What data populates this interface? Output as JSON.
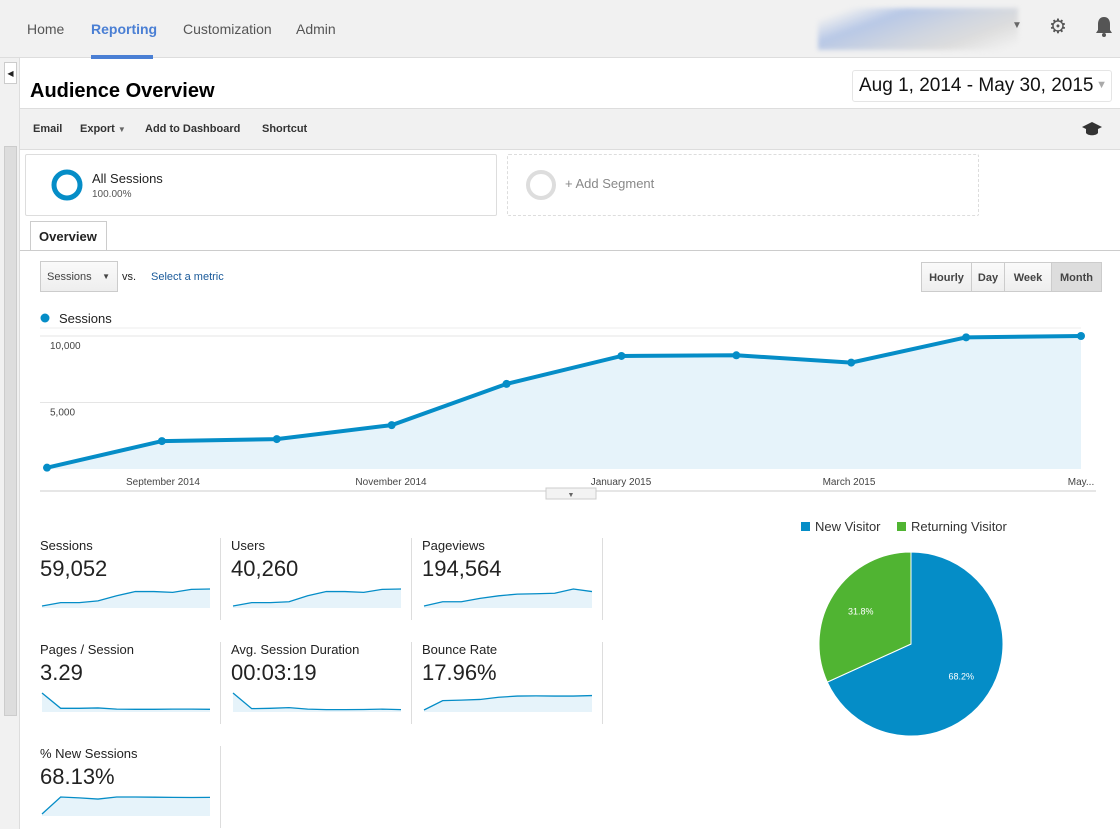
{
  "nav": {
    "items": [
      "Home",
      "Reporting",
      "Customization",
      "Admin"
    ],
    "active": "Reporting"
  },
  "header": {
    "title": "Audience Overview",
    "date_range": "Aug 1, 2014 - May 30, 2015"
  },
  "toolbar": {
    "email": "Email",
    "export": "Export",
    "add_to_dashboard": "Add to Dashboard",
    "shortcut": "Shortcut"
  },
  "segments": {
    "all_sessions": "All Sessions",
    "all_sessions_pct": "100.00%",
    "add_segment": "+ Add Segment"
  },
  "tabs": {
    "overview": "Overview"
  },
  "controls": {
    "metric": "Sessions",
    "vs": "vs.",
    "select_metric": "Select a metric",
    "granularity": [
      "Hourly",
      "Day",
      "Week",
      "Month"
    ],
    "active_granularity": "Month"
  },
  "colors": {
    "accent": "#058dc7",
    "returning": "#50b432",
    "nav_active": "#4a7fd4"
  },
  "chart_data": {
    "type": "area",
    "legend": "Sessions",
    "x": [
      "Aug 2014",
      "Sep 2014",
      "Oct 2014",
      "Nov 2014",
      "Dec 2014",
      "Jan 2015",
      "Feb 2015",
      "Mar 2015",
      "Apr 2015",
      "May 2015"
    ],
    "values": [
      100,
      2100,
      2250,
      3300,
      6400,
      8500,
      8550,
      8000,
      9900,
      10000
    ],
    "xtick_labels": [
      "September 2014",
      "November 2014",
      "January 2015",
      "March 2015",
      "May..."
    ],
    "ytick_labels": [
      "5,000",
      "10,000"
    ],
    "ylim": [
      0,
      10000
    ],
    "grid": true
  },
  "metrics": [
    {
      "label": "Sessions",
      "value": "59,052",
      "spark": [
        0,
        0.2,
        0.2,
        0.3,
        0.6,
        0.85,
        0.85,
        0.8,
        0.98,
        1
      ]
    },
    {
      "label": "Users",
      "value": "40,260",
      "spark": [
        0,
        0.2,
        0.2,
        0.25,
        0.6,
        0.85,
        0.85,
        0.8,
        0.98,
        1
      ]
    },
    {
      "label": "Pageviews",
      "value": "194,564",
      "spark": [
        0,
        0.25,
        0.25,
        0.45,
        0.6,
        0.7,
        0.72,
        0.75,
        1,
        0.85
      ]
    },
    {
      "label": "Pages / Session",
      "value": "3.29",
      "spark": [
        1,
        0.1,
        0.1,
        0.12,
        0.05,
        0.04,
        0.04,
        0.05,
        0.05,
        0.04
      ]
    },
    {
      "label": "Avg. Session Duration",
      "value": "00:03:19",
      "spark": [
        1,
        0.08,
        0.1,
        0.14,
        0.05,
        0.02,
        0.02,
        0.03,
        0.05,
        0.02
      ]
    },
    {
      "label": "Bounce Rate",
      "value": "17.96%",
      "spark": [
        0,
        0.55,
        0.58,
        0.62,
        0.75,
        0.82,
        0.83,
        0.82,
        0.82,
        0.85
      ]
    },
    {
      "label": "% New Sessions",
      "value": "68.13%",
      "spark": [
        0,
        1,
        0.95,
        0.88,
        1,
        1,
        0.99,
        0.98,
        0.97,
        0.98
      ]
    }
  ],
  "pie": {
    "legend": [
      "New Visitor",
      "Returning Visitor"
    ],
    "values": [
      68.2,
      31.8
    ],
    "labels": [
      "68.2%",
      "31.8%"
    ]
  }
}
